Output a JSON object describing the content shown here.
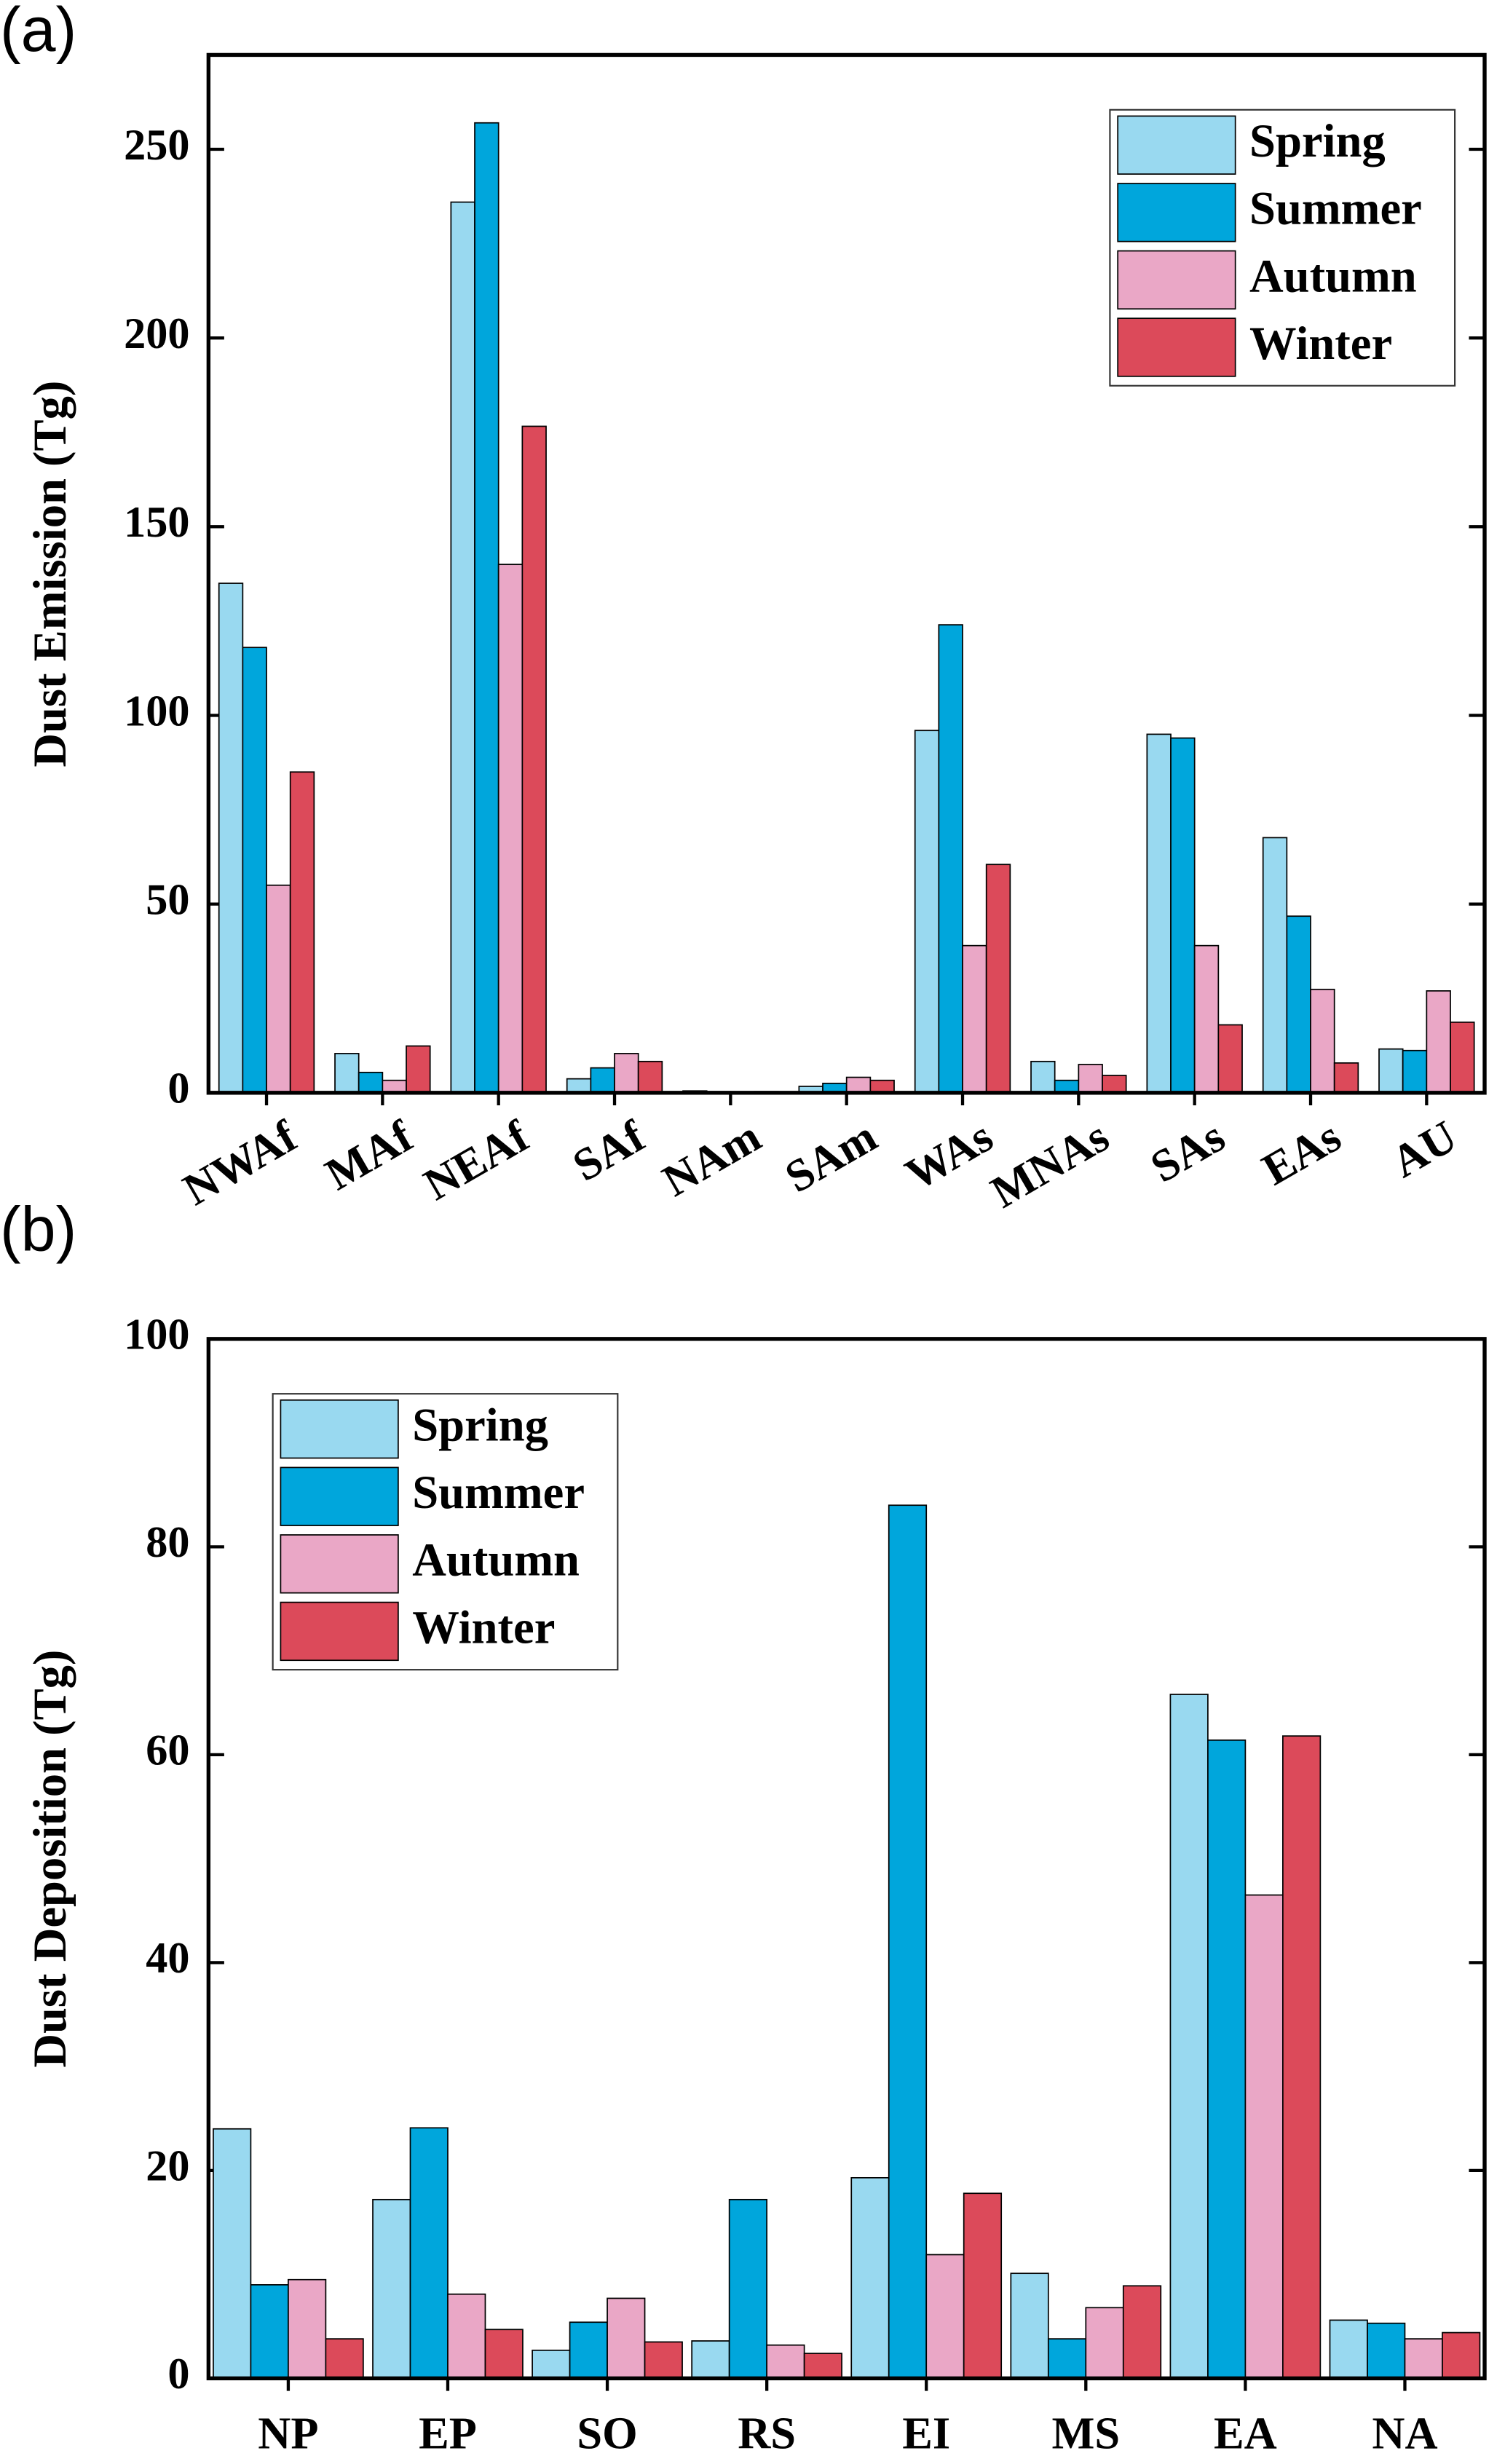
{
  "chart_data": [
    {
      "type": "bar",
      "label": "(a)",
      "y_label": "Dust Emission (Tg)",
      "categories": [
        "NWAf",
        "MAf",
        "NEAf",
        "SAf",
        "NAm",
        "SAm",
        "WAs",
        "MNAs",
        "SAs",
        "EAs",
        "AU"
      ],
      "series": [
        {
          "name": "Spring",
          "color": "#99d9f0",
          "values": [
            135,
            10.4,
            236,
            3.7,
            0.5,
            1.7,
            96,
            8.3,
            95,
            67.6,
            11.6
          ]
        },
        {
          "name": "Summer",
          "color": "#00a6dc",
          "values": [
            118,
            5.4,
            257,
            6.6,
            0.3,
            2.5,
            124,
            3.3,
            94,
            46.8,
            11.2
          ]
        },
        {
          "name": "Autumn",
          "color": "#eaa7c6",
          "values": [
            55,
            3.3,
            140,
            10.4,
            0.2,
            4.1,
            39,
            7.5,
            39,
            27.4,
            27
          ]
        },
        {
          "name": "Winter",
          "color": "#dc4a5a",
          "values": [
            85,
            12.4,
            176.6,
            8.3,
            0.3,
            3.3,
            60.5,
            4.6,
            18,
            7.9,
            18.7
          ]
        }
      ],
      "ylim": [
        0,
        275
      ],
      "yticks": [
        0,
        50,
        100,
        150,
        200,
        250
      ],
      "legend": "upper right"
    },
    {
      "type": "bar",
      "label": "(b)",
      "y_label": "Dust Deposition (Tg)",
      "categories": [
        "NP",
        "EP",
        "SO",
        "RS",
        "EI",
        "MS",
        "EA",
        "NA"
      ],
      "series": [
        {
          "name": "Spring",
          "color": "#99d9f0",
          "values": [
            24,
            17.2,
            2.7,
            3.6,
            19.3,
            10.1,
            65.8,
            5.6
          ]
        },
        {
          "name": "Summer",
          "color": "#00a6dc",
          "values": [
            9,
            24.1,
            5.4,
            17.2,
            84,
            3.8,
            61.4,
            5.3
          ]
        },
        {
          "name": "Autumn",
          "color": "#eaa7c6",
          "values": [
            9.5,
            8.1,
            7.7,
            3.2,
            11.9,
            6.8,
            46.5,
            3.8
          ]
        },
        {
          "name": "Winter",
          "color": "#dc4a5a",
          "values": [
            3.8,
            4.7,
            3.5,
            2.4,
            17.8,
            8.9,
            61.8,
            4.4
          ]
        }
      ],
      "ylim": [
        0,
        100
      ],
      "yticks": [
        0,
        20,
        40,
        60,
        80,
        100
      ],
      "legend": "upper left"
    }
  ]
}
